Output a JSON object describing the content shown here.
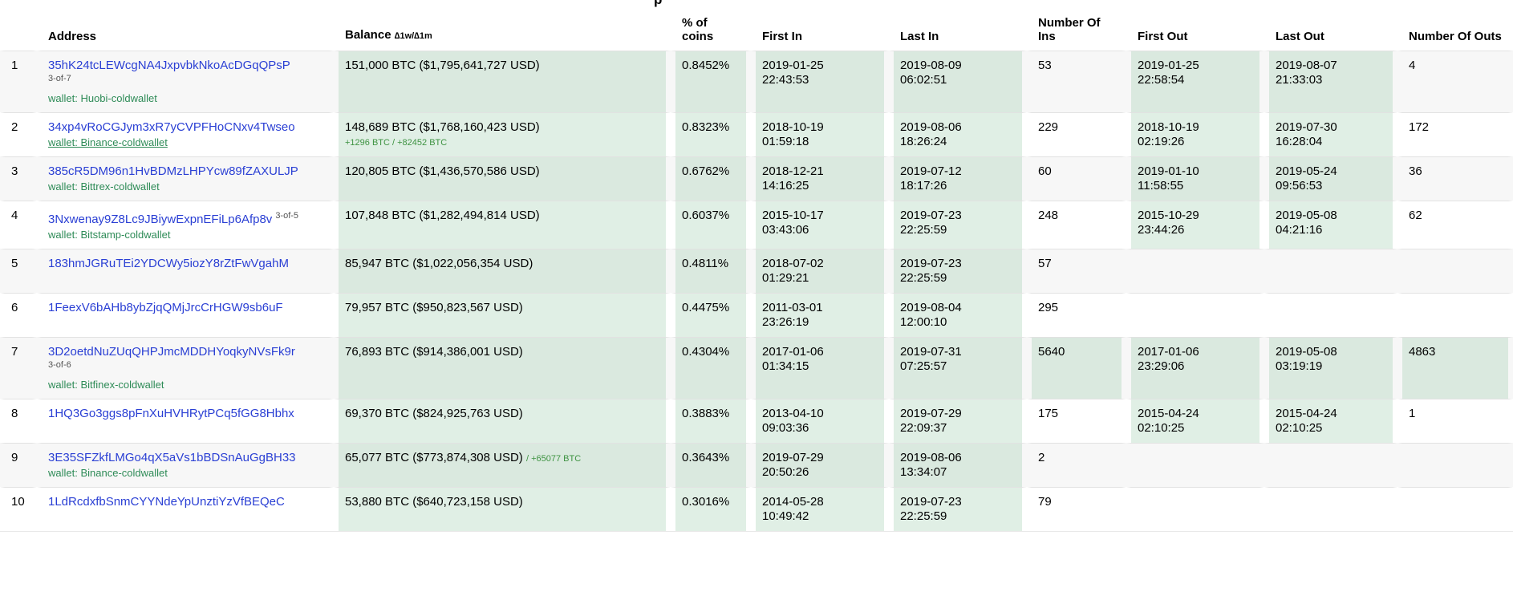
{
  "page": {
    "title_fragment": "p"
  },
  "table": {
    "headers": {
      "rank": "",
      "address": "Address",
      "balance": "Balance",
      "balance_delta": "∆1w/∆1m",
      "pct": "% of coins",
      "first_in": "First In",
      "last_in": "Last In",
      "ins": "Number Of Ins",
      "first_out": "First Out",
      "last_out": "Last Out",
      "outs": "Number Of Outs"
    },
    "rows": [
      {
        "rank": "1",
        "address": "35hK24tcLEWcgNA4JxpvbkNkoAcDGqQPsP",
        "multisig_inline": "",
        "multisig_below": "3-of-7",
        "wallet": "wallet: Huobi-coldwallet",
        "wallet_underlined": false,
        "balance": "151,000 BTC ($1,795,641,727 USD)",
        "balance_delta_inline": "",
        "balance_delta_line": "",
        "pct": "0.8452%",
        "first_in_date": "2019-01-25",
        "first_in_time": "22:43:53",
        "last_in_date": "2019-08-09",
        "last_in_time": "06:02:51",
        "ins": "53",
        "ins_hl": false,
        "first_out_date": "2019-01-25",
        "first_out_time": "22:58:54",
        "first_out_hl": true,
        "last_out_date": "2019-08-07",
        "last_out_time": "21:33:03",
        "last_out_hl": true,
        "outs": "4",
        "outs_hl": false
      },
      {
        "rank": "2",
        "address": "34xp4vRoCGJym3xR7yCVPFHoCNxv4Twseo",
        "multisig_inline": "",
        "multisig_below": "",
        "wallet": "wallet: Binance-coldwallet",
        "wallet_underlined": true,
        "balance": "148,689 BTC ($1,768,160,423 USD)",
        "balance_delta_inline": "",
        "balance_delta_line": "+1296 BTC / +82452 BTC",
        "pct": "0.8323%",
        "first_in_date": "2018-10-19",
        "first_in_time": "01:59:18",
        "last_in_date": "2019-08-06",
        "last_in_time": "18:26:24",
        "ins": "229",
        "ins_hl": false,
        "first_out_date": "2018-10-19",
        "first_out_time": "02:19:26",
        "first_out_hl": true,
        "last_out_date": "2019-07-30",
        "last_out_time": "16:28:04",
        "last_out_hl": true,
        "outs": "172",
        "outs_hl": false
      },
      {
        "rank": "3",
        "address": "385cR5DM96n1HvBDMzLHPYcw89fZAXULJP",
        "multisig_inline": "",
        "multisig_below": "",
        "wallet": "wallet: Bittrex-coldwallet",
        "wallet_underlined": false,
        "balance": "120,805 BTC ($1,436,570,586 USD)",
        "balance_delta_inline": "",
        "balance_delta_line": "",
        "pct": "0.6762%",
        "first_in_date": "2018-12-21",
        "first_in_time": "14:16:25",
        "last_in_date": "2019-07-12",
        "last_in_time": "18:17:26",
        "ins": "60",
        "ins_hl": false,
        "first_out_date": "2019-01-10",
        "first_out_time": "11:58:55",
        "first_out_hl": true,
        "last_out_date": "2019-05-24",
        "last_out_time": "09:56:53",
        "last_out_hl": true,
        "outs": "36",
        "outs_hl": false
      },
      {
        "rank": "4",
        "address": "3Nxwenay9Z8Lc9JBiywExpnEFiLp6Afp8v",
        "multisig_inline": "3-of-5",
        "multisig_below": "",
        "wallet": "wallet: Bitstamp-coldwallet",
        "wallet_underlined": false,
        "balance": "107,848 BTC ($1,282,494,814 USD)",
        "balance_delta_inline": "",
        "balance_delta_line": "",
        "pct": "0.6037%",
        "first_in_date": "2015-10-17",
        "first_in_time": "03:43:06",
        "last_in_date": "2019-07-23",
        "last_in_time": "22:25:59",
        "ins": "248",
        "ins_hl": false,
        "first_out_date": "2015-10-29",
        "first_out_time": "23:44:26",
        "first_out_hl": true,
        "last_out_date": "2019-05-08",
        "last_out_time": "04:21:16",
        "last_out_hl": true,
        "outs": "62",
        "outs_hl": false
      },
      {
        "rank": "5",
        "address": "183hmJGRuTEi2YDCWy5iozY8rZtFwVgahM",
        "multisig_inline": "",
        "multisig_below": "",
        "wallet": "",
        "wallet_underlined": false,
        "balance": "85,947 BTC ($1,022,056,354 USD)",
        "balance_delta_inline": "",
        "balance_delta_line": "",
        "pct": "0.4811%",
        "first_in_date": "2018-07-02",
        "first_in_time": "01:29:21",
        "last_in_date": "2019-07-23",
        "last_in_time": "22:25:59",
        "ins": "57",
        "ins_hl": false,
        "first_out_date": "",
        "first_out_time": "",
        "first_out_hl": false,
        "last_out_date": "",
        "last_out_time": "",
        "last_out_hl": false,
        "outs": "",
        "outs_hl": false
      },
      {
        "rank": "6",
        "address": "1FeexV6bAHb8ybZjqQMjJrcCrHGW9sb6uF",
        "multisig_inline": "",
        "multisig_below": "",
        "wallet": "",
        "wallet_underlined": false,
        "balance": "79,957 BTC ($950,823,567 USD)",
        "balance_delta_inline": "",
        "balance_delta_line": "",
        "pct": "0.4475%",
        "first_in_date": "2011-03-01",
        "first_in_time": "23:26:19",
        "last_in_date": "2019-08-04",
        "last_in_time": "12:00:10",
        "ins": "295",
        "ins_hl": false,
        "first_out_date": "",
        "first_out_time": "",
        "first_out_hl": false,
        "last_out_date": "",
        "last_out_time": "",
        "last_out_hl": false,
        "outs": "",
        "outs_hl": false
      },
      {
        "rank": "7",
        "address": "3D2oetdNuZUqQHPJmcMDDHYoqkyNVsFk9r",
        "multisig_inline": "",
        "multisig_below": "3-of-6",
        "wallet": "wallet: Bitfinex-coldwallet",
        "wallet_underlined": false,
        "balance": "76,893 BTC ($914,386,001 USD)",
        "balance_delta_inline": "",
        "balance_delta_line": "",
        "pct": "0.4304%",
        "first_in_date": "2017-01-06",
        "first_in_time": "01:34:15",
        "last_in_date": "2019-07-31",
        "last_in_time": "07:25:57",
        "ins": "5640",
        "ins_hl": true,
        "first_out_date": "2017-01-06",
        "first_out_time": "23:29:06",
        "first_out_hl": true,
        "last_out_date": "2019-05-08",
        "last_out_time": "03:19:19",
        "last_out_hl": true,
        "outs": "4863",
        "outs_hl": true
      },
      {
        "rank": "8",
        "address": "1HQ3Go3ggs8pFnXuHVHRytPCq5fGG8Hbhx",
        "multisig_inline": "",
        "multisig_below": "",
        "wallet": "",
        "wallet_underlined": false,
        "balance": "69,370 BTC ($824,925,763 USD)",
        "balance_delta_inline": "",
        "balance_delta_line": "",
        "pct": "0.3883%",
        "first_in_date": "2013-04-10",
        "first_in_time": "09:03:36",
        "last_in_date": "2019-07-29",
        "last_in_time": "22:09:37",
        "ins": "175",
        "ins_hl": false,
        "first_out_date": "2015-04-24",
        "first_out_time": "02:10:25",
        "first_out_hl": true,
        "last_out_date": "2015-04-24",
        "last_out_time": "02:10:25",
        "last_out_hl": true,
        "outs": "1",
        "outs_hl": false
      },
      {
        "rank": "9",
        "address": "3E35SFZkfLMGo4qX5aVs1bBDSnAuGgBH33",
        "multisig_inline": "",
        "multisig_below": "",
        "wallet": "wallet: Binance-coldwallet",
        "wallet_underlined": false,
        "balance": "65,077 BTC ($773,874,308 USD)",
        "balance_delta_inline": "/ +65077 BTC",
        "balance_delta_line": "",
        "pct": "0.3643%",
        "first_in_date": "2019-07-29",
        "first_in_time": "20:50:26",
        "last_in_date": "2019-08-06",
        "last_in_time": "13:34:07",
        "ins": "2",
        "ins_hl": false,
        "first_out_date": "",
        "first_out_time": "",
        "first_out_hl": false,
        "last_out_date": "",
        "last_out_time": "",
        "last_out_hl": false,
        "outs": "",
        "outs_hl": false
      },
      {
        "rank": "10",
        "address": "1LdRcdxfbSnmCYYNdeYpUnztiYzVfBEQeC",
        "multisig_inline": "",
        "multisig_below": "",
        "wallet": "",
        "wallet_underlined": false,
        "balance": "53,880 BTC ($640,723,158 USD)",
        "balance_delta_inline": "",
        "balance_delta_line": "",
        "pct": "0.3016%",
        "first_in_date": "2014-05-28",
        "first_in_time": "10:49:42",
        "last_in_date": "2019-07-23",
        "last_in_time": "22:25:59",
        "ins": "79",
        "ins_hl": false,
        "first_out_date": "",
        "first_out_time": "",
        "first_out_hl": false,
        "last_out_date": "",
        "last_out_time": "",
        "last_out_hl": false,
        "outs": "",
        "outs_hl": false
      }
    ]
  }
}
